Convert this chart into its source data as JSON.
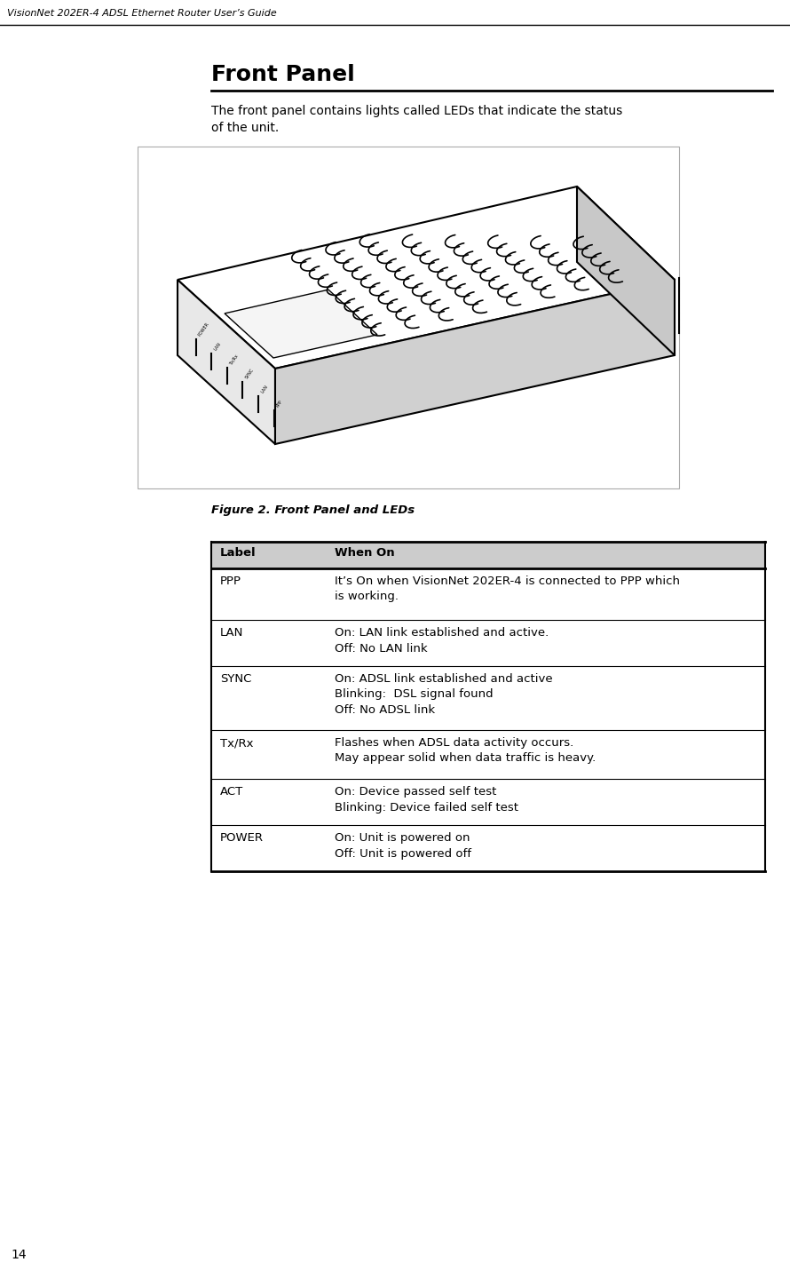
{
  "page_title": "VisionNet 202ER-4 ADSL Ethernet Router User’s Guide",
  "page_number": "14",
  "section_title": "Front Panel",
  "intro_text": "The front panel contains lights called LEDs that indicate the status\nof the unit.",
  "figure_caption": "Figure 2. Front Panel and LEDs",
  "bg_color": "#ffffff",
  "header_line_color": "#000000",
  "table_header_bg": "#cccccc",
  "table_border_color": "#000000",
  "table_rows": [
    {
      "label": "PPP",
      "description": "It’s On when VisionNet 202ER-4 is connected to PPP which\nis working."
    },
    {
      "label": "LAN",
      "description": "On: LAN link established and active.\nOff: No LAN link"
    },
    {
      "label": "SYNC",
      "description": "On: ADSL link established and active\nBlinking:  DSL signal found\nOff: No ADSL link"
    },
    {
      "label": "Tx/Rx",
      "description": "Flashes when ADSL data activity occurs.\nMay appear solid when data traffic is heavy."
    },
    {
      "label": "ACT",
      "description": "On: Device passed self test\nBlinking: Device failed self test"
    },
    {
      "label": "POWER",
      "description": "On: Unit is powered on\nOff: Unit is powered off"
    }
  ]
}
